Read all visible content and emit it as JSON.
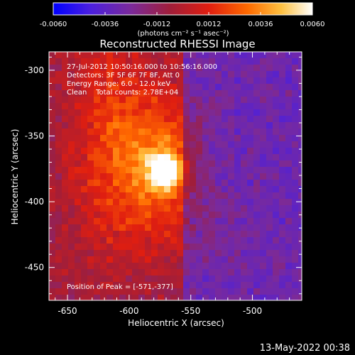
{
  "colors": {
    "background": "#000000",
    "text": "#ffffff",
    "colormap_stops": [
      "#0000ff",
      "#5a1fd6",
      "#8a2a8a",
      "#c01b20",
      "#f05000",
      "#ff9a00",
      "#ffe060",
      "#ffffff"
    ]
  },
  "colorbar": {
    "tick_labels": [
      "-0.0060",
      "-0.0036",
      "-0.0012",
      "0.0012",
      "0.0036",
      "0.0060"
    ],
    "range": [
      -0.006,
      0.006
    ],
    "unit_label": "(photons cm⁻² s⁻¹ asec⁻²)"
  },
  "title": "Reconstructed RHESSI Image",
  "annotations": {
    "time_range": "27-Jul-2012 10:50:16.000 to 10:56:16.000",
    "detectors": "Detectors: 3F 5F 6F 7F 8F, Att 0",
    "energy_range": "Energy Range: 6.0 - 12.0 keV",
    "method_counts": "Clean    Total counts: 2.78E+04",
    "peak": "Position of Peak = [-571,-377]"
  },
  "axes": {
    "xlabel": "Heliocentric X (arcsec)",
    "ylabel": "Heliocentric Y (arcsec)",
    "x_ticks": [
      "-650",
      "-600",
      "-550",
      "-500"
    ],
    "y_ticks": [
      "-300",
      "-350",
      "-400",
      "-450"
    ],
    "xlim": [
      -665,
      -460
    ],
    "ylim": [
      -475,
      -286
    ]
  },
  "image": {
    "peak_position": [
      -571,
      -377
    ]
  },
  "footer": {
    "timestamp": "13-May-2022 00:38"
  }
}
